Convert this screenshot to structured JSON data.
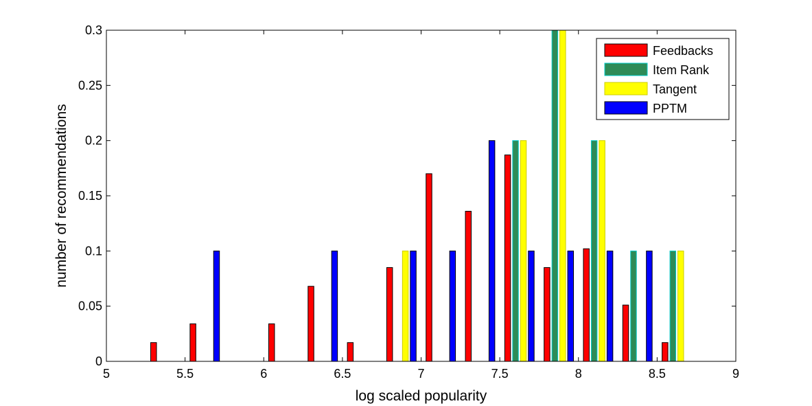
{
  "chart_data": {
    "type": "bar",
    "xlabel": "log scaled popularity",
    "ylabel": "number of recommendations",
    "xlim": [
      5,
      9
    ],
    "ylim": [
      0,
      0.3
    ],
    "x_ticks": [
      "5",
      "5.5",
      "6",
      "6.5",
      "7",
      "7.5",
      "8",
      "8.5",
      "9"
    ],
    "y_ticks": [
      "0",
      "0.05",
      "0.1",
      "0.15",
      "0.2",
      "0.25",
      "0.3"
    ],
    "grid": false,
    "legend_position": "top-right",
    "bin_centers": [
      5.125,
      5.375,
      5.625,
      5.875,
      6.125,
      6.375,
      6.625,
      6.875,
      7.125,
      7.375,
      7.625,
      7.875,
      8.125,
      8.375,
      8.625,
      8.875
    ],
    "series": [
      {
        "name": "Feedbacks",
        "color": "#ff0000",
        "edge": "#000000",
        "values": [
          0,
          0.017,
          0.034,
          0,
          0.034,
          0.068,
          0.017,
          0.085,
          0.17,
          0.136,
          0.187,
          0.085,
          0.102,
          0.051,
          0.017,
          0
        ]
      },
      {
        "name": "Item Rank",
        "color": "#2e8b57",
        "edge": "#00cccc",
        "values": [
          0,
          0,
          0,
          0,
          0,
          0,
          0,
          0,
          0,
          0,
          0.2,
          0.3,
          0.2,
          0.1,
          0.1,
          0
        ]
      },
      {
        "name": "Tangent",
        "color": "#ffff00",
        "edge": "#cccc00",
        "values": [
          0,
          0,
          0,
          0,
          0,
          0,
          0,
          0.1,
          0,
          0,
          0.2,
          0.3,
          0.2,
          0,
          0.1,
          0
        ]
      },
      {
        "name": "PPTM",
        "color": "#0000ff",
        "edge": "#000000",
        "values": [
          0,
          0,
          0.1,
          0,
          0,
          0.1,
          0,
          0.1,
          0.1,
          0.2,
          0.1,
          0.1,
          0.1,
          0.1,
          0,
          0
        ]
      }
    ]
  }
}
